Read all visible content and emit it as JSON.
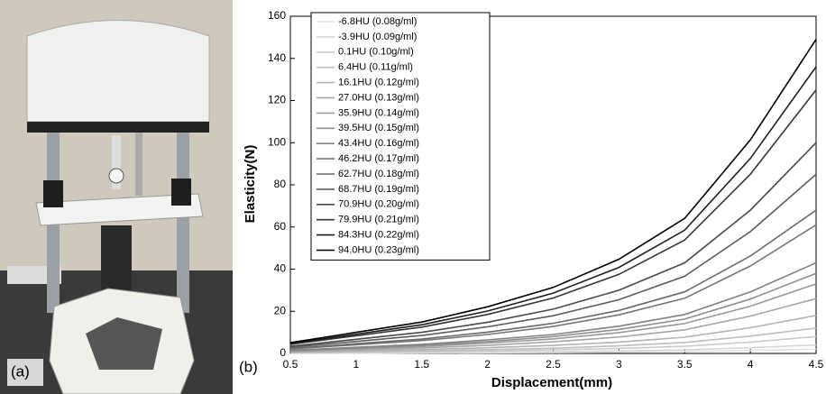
{
  "photo": {
    "label": "(a)"
  },
  "chart_data": {
    "type": "line",
    "panel_label": "(b)",
    "xlabel": "Displacement(mm)",
    "ylabel": "Elasticity(N)",
    "x": [
      0.5,
      1,
      1.5,
      2,
      2.5,
      3,
      3.5,
      4,
      4.5
    ],
    "xlim": [
      0.5,
      4.5
    ],
    "xticks": [
      0.5,
      1,
      1.5,
      2,
      2.5,
      3,
      3.5,
      4,
      4.5
    ],
    "ylim": [
      0,
      160
    ],
    "yticks": [
      0,
      20,
      40,
      60,
      80,
      100,
      120,
      140,
      160
    ],
    "legend": "upper left",
    "series": [
      {
        "name": "-6.8HU (0.08g/ml)",
        "color": "#e2e2e2",
        "values": [
          0.1,
          0.1,
          0.2,
          0.3,
          0.4,
          0.6,
          0.9,
          1.4,
          2
        ]
      },
      {
        "name": "-3.9HU (0.09g/ml)",
        "color": "#d6d6d6",
        "values": [
          0.1,
          0.3,
          0.4,
          0.6,
          0.8,
          1.2,
          1.7,
          2.7,
          4
        ]
      },
      {
        "name": "0.1HU (0.10g/ml)",
        "color": "#cacaca",
        "values": [
          0.3,
          0.5,
          0.8,
          1.2,
          1.7,
          2.4,
          3.4,
          5.4,
          8
        ]
      },
      {
        "name": "6.4HU (0.11g/ml)",
        "color": "#bebebe",
        "values": [
          0.4,
          0.8,
          1.2,
          1.8,
          2.5,
          3.6,
          5.2,
          8.2,
          12
        ]
      },
      {
        "name": "16.1HU (0.12g/ml)",
        "color": "#b2b2b2",
        "values": [
          0.6,
          1.2,
          1.8,
          2.7,
          3.8,
          5.4,
          7.7,
          12.2,
          18
        ]
      },
      {
        "name": "27.0HU (0.13g/ml)",
        "color": "#a6a6a6",
        "values": [
          0.9,
          1.7,
          2.6,
          3.8,
          5.5,
          7.8,
          11.2,
          17.7,
          26
        ]
      },
      {
        "name": "35.9HU (0.14g/ml)",
        "color": "#9a9a9a",
        "values": [
          1.1,
          2.2,
          3.3,
          4.9,
          6.9,
          9.9,
          14.2,
          22.4,
          33
        ]
      },
      {
        "name": "39.5HU (0.15g/ml)",
        "color": "#8e8e8e",
        "values": [
          1.3,
          2.5,
          3.8,
          5.6,
          8,
          11.4,
          16.3,
          25.8,
          38
        ]
      },
      {
        "name": "43.4HU (0.16g/ml)",
        "color": "#828282",
        "values": [
          1.5,
          2.9,
          4.3,
          6.4,
          9,
          12.9,
          18.5,
          29.2,
          43
        ]
      },
      {
        "name": "46.2HU (0.17g/ml)",
        "color": "#767676",
        "values": [
          2.1,
          4.1,
          6.1,
          9,
          12.8,
          18.3,
          26.2,
          41.5,
          61
        ]
      },
      {
        "name": "62.7HU (0.18g/ml)",
        "color": "#6a6a6a",
        "values": [
          2.3,
          4.6,
          6.8,
          10.1,
          14.3,
          20.4,
          29.2,
          46.2,
          68
        ]
      },
      {
        "name": "68.7HU (0.19g/ml)",
        "color": "#5c5c5c",
        "values": [
          2.9,
          5.7,
          8.5,
          12.6,
          17.9,
          25.5,
          36.6,
          57.8,
          85
        ]
      },
      {
        "name": "70.9HU (0.20g/ml)",
        "color": "#4a4a4a",
        "values": [
          3.4,
          6.7,
          10,
          14.8,
          21,
          30,
          43,
          68,
          100
        ]
      },
      {
        "name": "79.9HU (0.21g/ml)",
        "color": "#363636",
        "values": [
          4.3,
          8.4,
          12.5,
          18.5,
          26.3,
          37.5,
          53.8,
          85,
          125
        ]
      },
      {
        "name": "84.3HU (0.22g/ml)",
        "color": "#1e1e1e",
        "values": [
          4.6,
          9.1,
          13.6,
          20.1,
          28.6,
          40.8,
          58.5,
          92.5,
          136
        ]
      },
      {
        "name": "94.0HU (0.23g/ml)",
        "color": "#000000",
        "values": [
          5.1,
          10,
          14.9,
          22.1,
          31.3,
          44.7,
          64.1,
          101.3,
          149
        ]
      }
    ]
  }
}
